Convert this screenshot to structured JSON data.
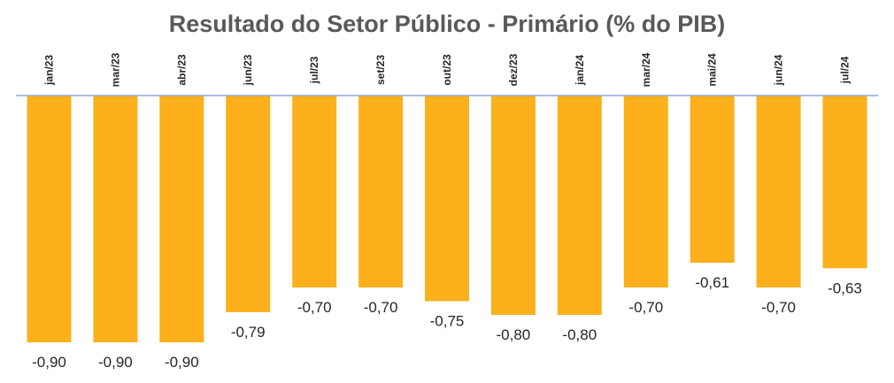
{
  "chart_data": {
    "type": "bar",
    "title": "Resultado do Setor Público - Primário (% do PIB)",
    "categories": [
      "jan/23",
      "mar/23",
      "abr/23",
      "jun/23",
      "jul/23",
      "set/23",
      "out/23",
      "dez/23",
      "jan/24",
      "mar/24",
      "mai/24",
      "jun/24",
      "jul/24"
    ],
    "values": [
      -0.9,
      -0.9,
      -0.9,
      -0.79,
      -0.7,
      -0.7,
      -0.75,
      -0.8,
      -0.8,
      -0.7,
      -0.61,
      -0.7,
      -0.63
    ],
    "data_labels": [
      "-0,90",
      "-0,90",
      "-0,90",
      "-0,79",
      "-0,70",
      "-0,70",
      "-0,75",
      "-0,80",
      "-0,80",
      "-0,70",
      "-0,61",
      "-0,70",
      "-0,63"
    ],
    "xlabel": "",
    "ylabel": "",
    "ylim": [
      -0.9,
      0
    ],
    "bar_color": "#FBB01C",
    "axis_color": "#8EA9DB",
    "grid": false,
    "legend": "none"
  }
}
